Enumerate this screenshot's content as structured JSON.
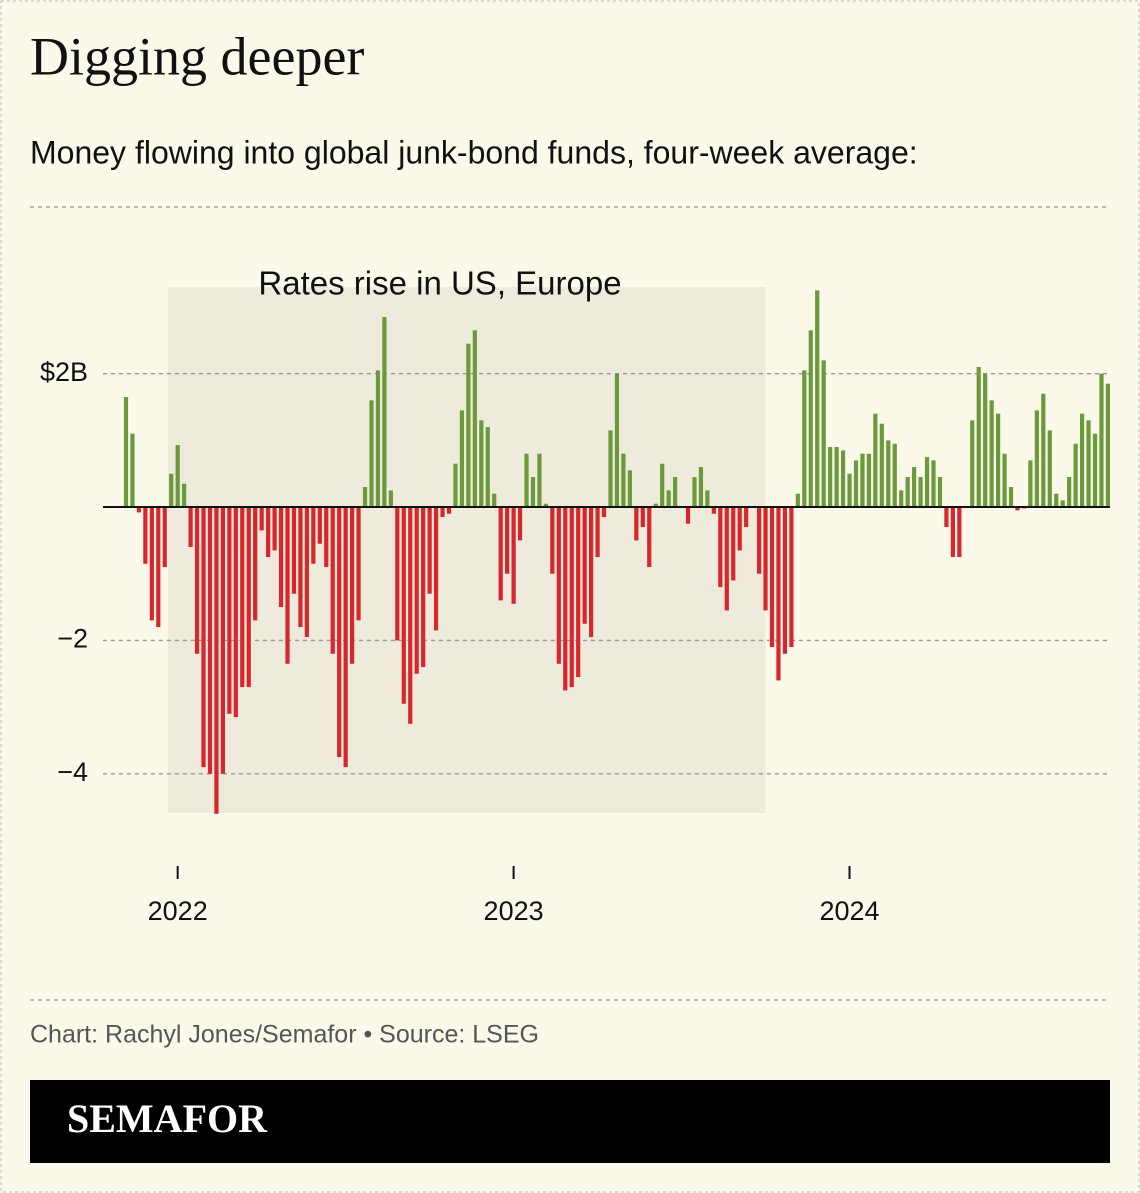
{
  "chart_data": {
    "type": "bar",
    "title": "Digging deeper",
    "subtitle": "Money flowing into global junk-bond funds, four-week average:",
    "annotation": "Rates rise in US, Europe",
    "source": "Chart: Rachyl Jones/Semafor • Source: LSEG",
    "brand": "SEMAFOR",
    "categories": [
      null,
      null,
      null,
      null,
      null,
      null,
      null,
      null,
      "2022",
      null,
      null,
      null,
      null,
      null,
      null,
      null,
      null,
      null,
      null,
      null,
      null,
      null,
      null,
      null,
      null,
      null,
      null,
      null,
      null,
      null,
      null,
      null,
      null,
      null,
      null,
      null,
      null,
      null,
      null,
      null,
      null,
      null,
      null,
      null,
      null,
      null,
      null,
      null,
      null,
      null,
      null,
      null,
      null,
      null,
      null,
      null,
      null,
      null,
      null,
      null,
      "2023",
      null,
      null,
      null,
      null,
      null,
      null,
      null,
      null,
      null,
      null,
      null,
      null,
      null,
      null,
      null,
      null,
      null,
      null,
      null,
      null,
      null,
      null,
      null,
      null,
      null,
      null,
      null,
      null,
      null,
      null,
      null,
      null,
      null,
      null,
      null,
      null,
      null,
      null,
      null,
      null,
      null,
      null,
      null,
      null,
      null,
      null,
      null,
      null,
      null,
      null,
      null,
      "2024",
      null,
      null,
      null,
      null,
      null,
      null,
      null,
      null,
      null,
      null,
      null,
      null,
      null,
      null,
      null,
      null,
      null,
      null,
      null,
      null,
      null,
      null,
      null,
      null,
      null,
      null,
      null,
      null,
      null,
      null,
      null,
      null,
      null,
      null,
      null,
      null,
      null,
      null,
      null,
      null
    ],
    "values": [
      1.65,
      1.1,
      -0.08,
      -0.85,
      -1.7,
      -1.8,
      -0.9,
      0.5,
      0.93,
      0.35,
      -0.6,
      -2.2,
      -3.9,
      -4.0,
      -4.6,
      -4.0,
      -3.1,
      -3.15,
      -2.7,
      -2.7,
      -1.7,
      -0.35,
      -0.75,
      -0.65,
      -1.5,
      -2.35,
      -1.3,
      -1.8,
      -1.95,
      -0.85,
      -0.55,
      -0.9,
      -2.2,
      -3.75,
      -3.9,
      -2.35,
      -1.7,
      0.3,
      1.6,
      2.05,
      2.85,
      0.25,
      -2.0,
      -2.95,
      -3.25,
      -2.5,
      -2.4,
      -1.3,
      -1.85,
      -0.15,
      -0.1,
      0.65,
      1.45,
      2.45,
      2.65,
      1.3,
      1.2,
      0.2,
      -1.4,
      -1.0,
      -1.45,
      -0.5,
      0.8,
      0.45,
      0.8,
      0.05,
      -1.0,
      -2.35,
      -2.75,
      -2.7,
      -2.55,
      -1.75,
      -1.95,
      -0.75,
      -0.15,
      1.15,
      2.0,
      0.8,
      0.55,
      -0.5,
      -0.3,
      -0.9,
      0.05,
      0.65,
      0.25,
      0.45,
      0.0,
      -0.25,
      0.45,
      0.6,
      0.25,
      -0.1,
      -1.2,
      -1.55,
      -1.1,
      -0.65,
      -0.3,
      0.0,
      -1.0,
      -1.55,
      -2.1,
      -2.6,
      -2.2,
      -2.1,
      0.2,
      2.05,
      2.65,
      3.25,
      2.2,
      0.9,
      0.9,
      0.85,
      0.5,
      0.7,
      0.8,
      0.8,
      1.4,
      1.25,
      1.0,
      0.95,
      0.25,
      0.45,
      0.6,
      0.45,
      0.75,
      0.7,
      0.45,
      -0.3,
      -0.75,
      -0.75,
      0.0,
      1.3,
      2.1,
      2.0,
      1.6,
      1.4,
      0.8,
      0.3,
      -0.05,
      -0.02,
      0.7,
      1.45,
      1.7,
      1.15,
      0.2,
      0.1,
      0.45,
      0.95,
      1.4,
      1.3,
      1.1,
      2.0,
      1.85
    ],
    "positive_color": "#6b9a3c",
    "negative_color": "#d8262c",
    "ylim": [
      -4.6,
      3.3
    ],
    "yticks": [
      {
        "value": 2,
        "label": "$2B"
      },
      {
        "value": -2,
        "label": "−2"
      },
      {
        "value": -4,
        "label": "−4"
      }
    ],
    "grid": true
  }
}
